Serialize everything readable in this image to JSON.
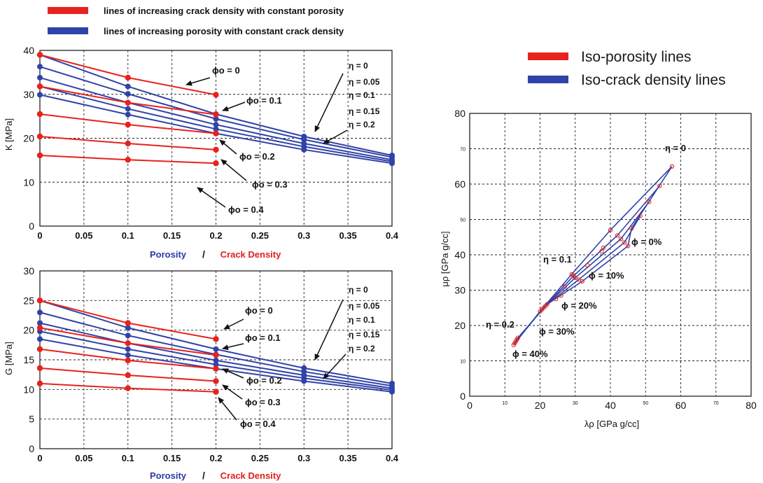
{
  "legend_left": {
    "red_label": "lines of increasing crack density with constant porosity",
    "blue_label": "lines of increasing porosity with constant crack density"
  },
  "legend_right": {
    "red_label": "Iso-porosity lines",
    "blue_label": "Iso-crack density lines"
  },
  "colors": {
    "red": "#e8221d",
    "blue": "#3043a8",
    "grid": "#222222"
  },
  "chart_data": [
    {
      "id": "K",
      "type": "line",
      "ylabel": "K [MPa]",
      "xlabel_porosity": "Porosity",
      "xlabel_sep": "/",
      "xlabel_crack": "Crack Density",
      "xlim": [
        0,
        0.4
      ],
      "ylim": [
        0,
        40
      ],
      "x_ticks": [
        "0",
        "0.05",
        "0.1",
        "0.15",
        "0.2",
        "0.25",
        "0.3",
        "0.35",
        "0.4"
      ],
      "y_ticks": [
        "0",
        "10",
        "20",
        "30",
        "40"
      ],
      "red_series": [
        {
          "name": "φo = 0",
          "x": [
            0,
            0.1,
            0.2
          ],
          "y": [
            39,
            33.8,
            29.9
          ]
        },
        {
          "name": "φo = 0.1",
          "x": [
            0,
            0.1,
            0.2
          ],
          "y": [
            31.8,
            28.1,
            25.4
          ]
        },
        {
          "name": "φo = 0.2",
          "x": [
            0,
            0.1,
            0.2
          ],
          "y": [
            25.5,
            23.1,
            21.1
          ]
        },
        {
          "name": "φo = 0.3",
          "x": [
            0,
            0.1,
            0.2
          ],
          "y": [
            20.4,
            18.8,
            17.4
          ]
        },
        {
          "name": "φo = 0.4",
          "x": [
            0,
            0.1,
            0.2
          ],
          "y": [
            16.1,
            15.1,
            14.3
          ]
        }
      ],
      "blue_series": [
        {
          "name": "η = 0",
          "x": [
            0,
            0.1,
            0.2,
            0.3,
            0.4
          ],
          "y": [
            39,
            31.8,
            25.5,
            20.4,
            16.1
          ]
        },
        {
          "name": "η = 0.05",
          "x": [
            0,
            0.1,
            0.2,
            0.3,
            0.4
          ],
          "y": [
            36.3,
            30.1,
            24.4,
            19.7,
            15.7
          ]
        },
        {
          "name": "η = 0.1",
          "x": [
            0,
            0.1,
            0.2,
            0.3,
            0.4
          ],
          "y": [
            33.8,
            28.1,
            23.1,
            18.8,
            15.1
          ]
        },
        {
          "name": "η = 0.15",
          "x": [
            0,
            0.1,
            0.2,
            0.3,
            0.4
          ],
          "y": [
            31.8,
            26.7,
            22.1,
            18.1,
            14.7
          ]
        },
        {
          "name": "η = 0.2",
          "x": [
            0,
            0.1,
            0.2,
            0.3,
            0.4
          ],
          "y": [
            29.9,
            25.4,
            21.1,
            17.4,
            14.3
          ]
        }
      ],
      "annotations": {
        "phi0": "ϕo = 0",
        "phi1": "ϕo = 0.1",
        "phi2": "ϕo = 0.2",
        "phi3": "ϕo = 0.3",
        "phi4": "ϕo = 0.4",
        "eta0": "η = 0",
        "eta005": "η = 0.05",
        "eta01": "η = 0.1",
        "eta015": "η = 0.15",
        "eta02": "η = 0.2"
      }
    },
    {
      "id": "G",
      "type": "line",
      "ylabel": "G [MPa]",
      "xlabel_porosity": "Porosity",
      "xlabel_sep": "/",
      "xlabel_crack": "Crack Density",
      "xlim": [
        0,
        0.4
      ],
      "ylim": [
        0,
        30
      ],
      "x_ticks": [
        "0",
        "0.05",
        "0.1",
        "0.15",
        "0.2",
        "0.25",
        "0.3",
        "0.35",
        "0.4"
      ],
      "y_ticks": [
        "0",
        "5",
        "10",
        "15",
        "20",
        "25",
        "30"
      ],
      "red_series": [
        {
          "name": "φo = 0",
          "x": [
            0,
            0.1,
            0.2
          ],
          "y": [
            25,
            21.2,
            18.5
          ]
        },
        {
          "name": "φo = 0.1",
          "x": [
            0,
            0.1,
            0.2
          ],
          "y": [
            20.4,
            17.8,
            15.8
          ]
        },
        {
          "name": "φo = 0.2",
          "x": [
            0,
            0.1,
            0.2
          ],
          "y": [
            16.8,
            14.9,
            13.5
          ]
        },
        {
          "name": "φo = 0.3",
          "x": [
            0,
            0.1,
            0.2
          ],
          "y": [
            13.6,
            12.4,
            11.4
          ]
        },
        {
          "name": "φo = 0.4",
          "x": [
            0,
            0.1,
            0.2
          ],
          "y": [
            11,
            10.2,
            9.6
          ]
        }
      ],
      "blue_series": [
        {
          "name": "η = 0",
          "x": [
            0,
            0.1,
            0.2,
            0.3,
            0.4
          ],
          "y": [
            25,
            20.4,
            16.8,
            13.6,
            11
          ]
        },
        {
          "name": "η = 0.05",
          "x": [
            0,
            0.1,
            0.2,
            0.3,
            0.4
          ],
          "y": [
            23,
            19.1,
            15.9,
            13,
            10.6
          ]
        },
        {
          "name": "η = 0.1",
          "x": [
            0,
            0.1,
            0.2,
            0.3,
            0.4
          ],
          "y": [
            21.2,
            17.8,
            14.9,
            12.4,
            10.2
          ]
        },
        {
          "name": "η = 0.15",
          "x": [
            0,
            0.1,
            0.2,
            0.3,
            0.4
          ],
          "y": [
            19.8,
            16.8,
            14.2,
            11.9,
            9.9
          ]
        },
        {
          "name": "η = 0.2",
          "x": [
            0,
            0.1,
            0.2,
            0.3,
            0.4
          ],
          "y": [
            18.5,
            15.8,
            13.5,
            11.4,
            9.6
          ]
        }
      ],
      "annotations": {
        "phi0": "ϕo = 0",
        "phi1": "ϕo = 0.1",
        "phi2": "ϕo = 0.2",
        "phi3": "ϕo = 0.3",
        "phi4": "ϕo = 0.4",
        "eta0": "η = 0",
        "eta005": "η = 0.05",
        "eta01": "η = 0.1",
        "eta015": "η = 0.15",
        "eta02": "η = 0.2"
      }
    },
    {
      "id": "LMR",
      "type": "scatter",
      "xlabel": "λρ [GPa g/cc]",
      "ylabel": "μρ [GPa g/cc]",
      "xlim": [
        0,
        80
      ],
      "ylim": [
        0,
        80
      ],
      "x_ticks_major": [
        "0",
        "20",
        "40",
        "60",
        "80"
      ],
      "x_ticks_minor": [
        "10",
        "30",
        "50",
        "70"
      ],
      "y_ticks_major": [
        "0",
        "20",
        "30",
        "40",
        "60",
        "80"
      ],
      "y_ticks_minor": [
        "10",
        "50",
        "70"
      ],
      "iso_crack_lines": [
        {
          "name": "η = 0",
          "x": [
            12.5,
            20,
            29,
            40,
            57.5
          ],
          "y": [
            14.5,
            24,
            34.5,
            47,
            65
          ]
        },
        {
          "name": "η = 0.05",
          "x": [
            12.8,
            20.5,
            29.5,
            42,
            54
          ],
          "y": [
            15,
            24.5,
            34,
            45.5,
            59.5
          ]
        },
        {
          "name": "η = 0.1",
          "x": [
            13.1,
            21,
            30,
            43,
            51
          ],
          "y": [
            15.5,
            25,
            33.5,
            44.5,
            55
          ]
        },
        {
          "name": "η = 0.15",
          "x": [
            13.4,
            21.5,
            31,
            44,
            48.5
          ],
          "y": [
            16,
            25.5,
            33,
            43.5,
            51
          ]
        },
        {
          "name": "η = 0.2",
          "x": [
            13.7,
            22,
            32,
            45,
            46
          ],
          "y": [
            16.5,
            26,
            32.5,
            42.5,
            47.5
          ]
        }
      ],
      "iso_porosity_points": {
        "x": [
          57.5,
          54,
          51,
          48.5,
          46,
          40,
          42,
          43,
          44,
          45,
          29,
          29.5,
          30,
          31,
          32,
          20,
          20.5,
          21,
          21.5,
          22,
          12.5,
          12.8,
          13.1,
          13.4,
          13.7,
          33.5,
          37.5,
          26,
          27,
          24.5,
          38
        ],
        "y": [
          65,
          59.5,
          55,
          51,
          47.5,
          47,
          45.5,
          44.5,
          43.5,
          42.5,
          34.5,
          34,
          33.5,
          33,
          32.5,
          24,
          24.5,
          25,
          25.5,
          26,
          14.5,
          15,
          15.5,
          16,
          16.5,
          37,
          41,
          28.5,
          31,
          27.5,
          42
        ]
      },
      "annotations": {
        "eta0": "η = 0",
        "eta01": "η = 0.1",
        "eta02": "η = 0.2",
        "phi0": "ϕ = 0%",
        "phi10": "ϕ = 10%",
        "phi20": "ϕ = 20%",
        "phi30": "ϕ = 30%",
        "phi40": "ϕ = 40%"
      }
    }
  ]
}
